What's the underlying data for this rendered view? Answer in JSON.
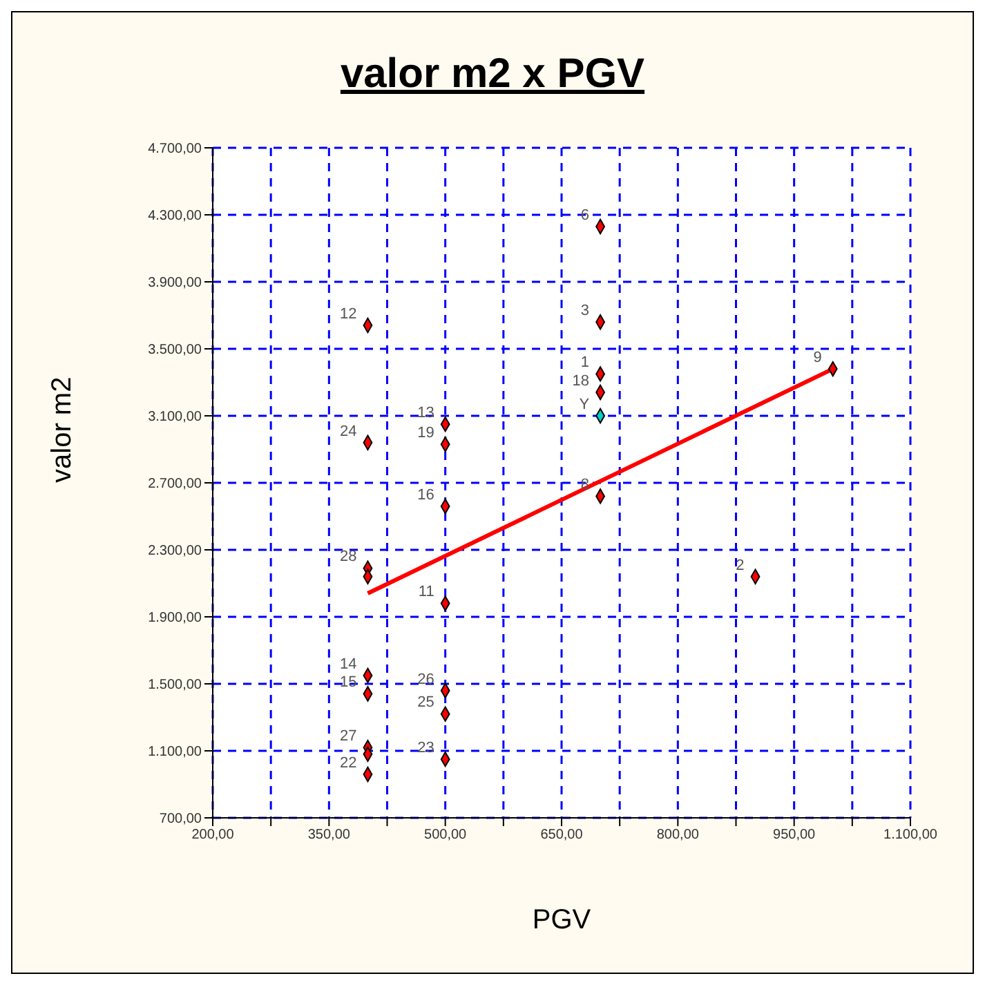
{
  "chart_data": {
    "type": "scatter",
    "title": "valor m2 x PGV",
    "xlabel": "PGV",
    "ylabel": "valor m2",
    "marker": "diamond",
    "grid": true,
    "xlim": [
      200,
      1100
    ],
    "xticks": [
      {
        "value": 200,
        "label": "200,00"
      },
      {
        "value": 275,
        "label": null
      },
      {
        "value": 350,
        "label": "350,00"
      },
      {
        "value": 425,
        "label": null
      },
      {
        "value": 500,
        "label": "500,00"
      },
      {
        "value": 575,
        "label": null
      },
      {
        "value": 650,
        "label": "650,00"
      },
      {
        "value": 725,
        "label": null
      },
      {
        "value": 800,
        "label": "800,00"
      },
      {
        "value": 875,
        "label": null
      },
      {
        "value": 950,
        "label": "950,00"
      },
      {
        "value": 1025,
        "label": null
      },
      {
        "value": 1100,
        "label": "1.100,00"
      }
    ],
    "ylim": [
      700,
      4700
    ],
    "yticks": [
      {
        "value": 700,
        "label": "700,00"
      },
      {
        "value": 1100,
        "label": "1.100,00"
      },
      {
        "value": 1500,
        "label": "1.500,00"
      },
      {
        "value": 1900,
        "label": "1.900,00"
      },
      {
        "value": 2300,
        "label": "2.300,00"
      },
      {
        "value": 2700,
        "label": "2.700,00"
      },
      {
        "value": 3100,
        "label": "3.100,00"
      },
      {
        "value": 3500,
        "label": "3.500,00"
      },
      {
        "value": 3900,
        "label": "3.900,00"
      },
      {
        "value": 4300,
        "label": "4.300,00"
      },
      {
        "value": 4700,
        "label": "4.700,00"
      }
    ],
    "series": [
      {
        "color": "#ff0000",
        "x": [
          400,
          400,
          400,
          400,
          400,
          400,
          400,
          400,
          400,
          500,
          500,
          500,
          500,
          500,
          500,
          500,
          700,
          700,
          700,
          700,
          700,
          900,
          1000
        ],
        "values": [
          3640,
          2940,
          2190,
          2140,
          1550,
          1440,
          1120,
          1080,
          960,
          3050,
          2930,
          2560,
          1980,
          1460,
          1320,
          1050,
          4230,
          3660,
          3350,
          3240,
          2620,
          2140,
          3380
        ]
      },
      {
        "color": "#00cccc",
        "x": [
          700
        ],
        "values": [
          3100
        ]
      },
      {
        "type": "line",
        "color": "#ff0000",
        "marker": "none",
        "x": [
          400,
          1000
        ],
        "values": [
          2040,
          3380
        ]
      }
    ],
    "annotations": [
      {
        "text": "12",
        "x": 400,
        "y": 3640
      },
      {
        "text": "24",
        "x": 400,
        "y": 2940
      },
      {
        "text": "28",
        "x": 400,
        "y": 2190
      },
      {
        "text": "14",
        "x": 400,
        "y": 1550
      },
      {
        "text": "15",
        "x": 400,
        "y": 1440
      },
      {
        "text": "27",
        "x": 400,
        "y": 1120
      },
      {
        "text": "22",
        "x": 400,
        "y": 960
      },
      {
        "text": "13",
        "x": 500,
        "y": 3050
      },
      {
        "text": "19",
        "x": 500,
        "y": 2930
      },
      {
        "text": "16",
        "x": 500,
        "y": 2560
      },
      {
        "text": "11",
        "x": 500,
        "y": 1980
      },
      {
        "text": "26",
        "x": 500,
        "y": 1460
      },
      {
        "text": "25",
        "x": 500,
        "y": 1320
      },
      {
        "text": "23",
        "x": 500,
        "y": 1050
      },
      {
        "text": "6",
        "x": 700,
        "y": 4230
      },
      {
        "text": "3",
        "x": 700,
        "y": 3660
      },
      {
        "text": "1",
        "x": 700,
        "y": 3350
      },
      {
        "text": "18",
        "x": 700,
        "y": 3240
      },
      {
        "text": "Y",
        "x": 700,
        "y": 3100
      },
      {
        "text": "8",
        "x": 700,
        "y": 2620
      },
      {
        "text": "2",
        "x": 900,
        "y": 2140
      },
      {
        "text": "9",
        "x": 1000,
        "y": 3380
      }
    ]
  }
}
